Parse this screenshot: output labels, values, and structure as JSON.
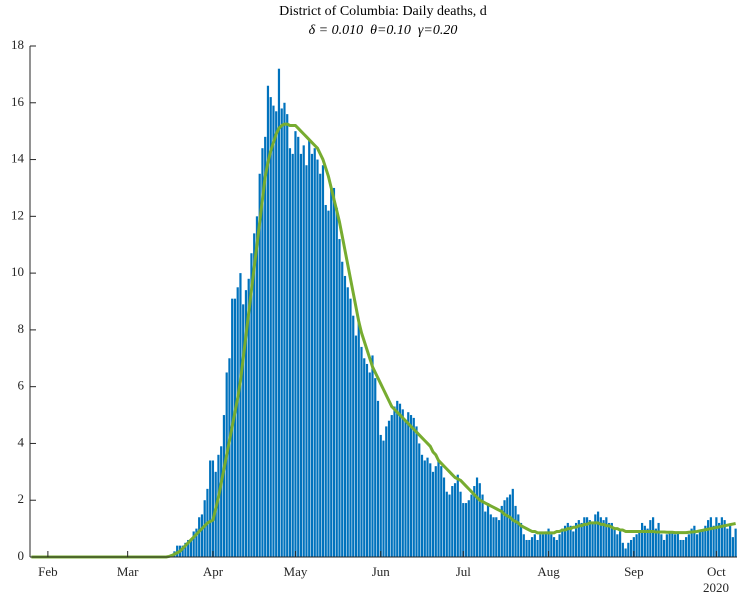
{
  "chart_data": {
    "type": "bar",
    "title": "District of Columbia: Daily deaths, d",
    "subtitle": "δ = 0.010  θ=0.10  γ=0.20",
    "x_axis_year": "2020",
    "categories": [
      null,
      null,
      null,
      null,
      null,
      null,
      "Feb",
      null,
      null,
      null,
      null,
      null,
      null,
      null,
      null,
      null,
      null,
      null,
      null,
      null,
      null,
      null,
      null,
      null,
      null,
      null,
      null,
      null,
      null,
      null,
      null,
      null,
      null,
      null,
      null,
      "Mar",
      null,
      null,
      null,
      null,
      null,
      null,
      null,
      null,
      null,
      null,
      null,
      null,
      null,
      null,
      null,
      null,
      null,
      null,
      null,
      null,
      null,
      null,
      null,
      null,
      null,
      null,
      null,
      null,
      null,
      null,
      "Apr",
      null,
      null,
      null,
      null,
      null,
      null,
      null,
      null,
      null,
      null,
      null,
      null,
      null,
      null,
      null,
      null,
      null,
      null,
      null,
      null,
      null,
      null,
      null,
      null,
      null,
      null,
      null,
      null,
      null,
      "May",
      null,
      null,
      null,
      null,
      null,
      null,
      null,
      null,
      null,
      null,
      null,
      null,
      null,
      null,
      null,
      null,
      null,
      null,
      null,
      null,
      null,
      null,
      null,
      null,
      null,
      null,
      null,
      null,
      null,
      null,
      "Jun",
      null,
      null,
      null,
      null,
      null,
      null,
      null,
      null,
      null,
      null,
      null,
      null,
      null,
      null,
      null,
      null,
      null,
      null,
      null,
      null,
      null,
      null,
      null,
      null,
      null,
      null,
      null,
      null,
      null,
      "Jul",
      null,
      null,
      null,
      null,
      null,
      null,
      null,
      null,
      null,
      null,
      null,
      null,
      null,
      null,
      null,
      null,
      null,
      null,
      null,
      null,
      null,
      null,
      null,
      null,
      null,
      null,
      null,
      null,
      null,
      null,
      "Aug",
      null,
      null,
      null,
      null,
      null,
      null,
      null,
      null,
      null,
      null,
      null,
      null,
      null,
      null,
      null,
      null,
      null,
      null,
      null,
      null,
      null,
      null,
      null,
      null,
      null,
      null,
      null,
      null,
      null,
      null,
      "Sep",
      null,
      null,
      null,
      null,
      null,
      null,
      null,
      null,
      null,
      null,
      null,
      null,
      null,
      null,
      null,
      null,
      null,
      null,
      null,
      null,
      null,
      null,
      null,
      null,
      null,
      null,
      null,
      null,
      null,
      "Oct",
      null,
      null,
      null,
      null,
      null,
      null,
      null
    ],
    "series": [
      {
        "type": "bar",
        "color": "#0072bd",
        "values": [
          0,
          0,
          0,
          0,
          0,
          0,
          0,
          0,
          0,
          0,
          0,
          0,
          0,
          0,
          0,
          0,
          0,
          0,
          0,
          0,
          0,
          0,
          0,
          0,
          0,
          0,
          0,
          0,
          0,
          0,
          0,
          0,
          0,
          0,
          0,
          0,
          0,
          0,
          0,
          0,
          0,
          0,
          0,
          0,
          0,
          0,
          0,
          0,
          0,
          0,
          0,
          0.1,
          0.2,
          0.4,
          0.4,
          0.4,
          0.5,
          0.6,
          0.6,
          0.9,
          1.0,
          1.4,
          1.5,
          2.0,
          2.4,
          3.4,
          3.4,
          3.0,
          3.6,
          3.9,
          5.0,
          6.5,
          7.0,
          9.1,
          9.1,
          9.5,
          10.0,
          8.9,
          9.4,
          9.8,
          10.7,
          11.4,
          12.0,
          13.5,
          14.4,
          14.8,
          16.6,
          16.2,
          15.9,
          15.7,
          17.2,
          15.8,
          16.0,
          15.6,
          14.4,
          14.2,
          15.0,
          14.8,
          14.2,
          14.5,
          13.8,
          14.7,
          14.2,
          14.4,
          14.0,
          13.5,
          13.8,
          12.4,
          12.2,
          13.0,
          13.0,
          12.3,
          11.2,
          10.4,
          9.9,
          9.5,
          9.1,
          8.5,
          7.8,
          8.3,
          7.4,
          7.0,
          6.8,
          6.5,
          7.1,
          6.3,
          5.5,
          4.3,
          4.1,
          4.6,
          4.8,
          5.0,
          5.3,
          5.5,
          5.4,
          5.2,
          4.8,
          5.1,
          5.0,
          4.9,
          4.6,
          4.0,
          3.6,
          3.4,
          3.5,
          3.3,
          3.0,
          3.2,
          3.4,
          3.2,
          2.8,
          2.3,
          2.2,
          2.5,
          2.6,
          2.9,
          2.3,
          1.9,
          1.9,
          2.0,
          2.2,
          2.5,
          2.8,
          2.6,
          2.2,
          1.6,
          1.9,
          1.5,
          1.4,
          1.4,
          1.3,
          1.8,
          2.0,
          2.1,
          2.2,
          2.4,
          1.8,
          1.5,
          1.2,
          0.8,
          0.6,
          0.6,
          0.7,
          0.8,
          0.6,
          0.8,
          0.8,
          0.9,
          1.0,
          0.8,
          0.7,
          0.6,
          0.8,
          1.0,
          1.1,
          1.2,
          1.1,
          0.9,
          1.2,
          1.3,
          1.2,
          1.4,
          1.4,
          1.3,
          1.2,
          1.5,
          1.6,
          1.4,
          1.3,
          1.4,
          1.2,
          1.2,
          1.0,
          0.8,
          0.9,
          0.5,
          0.3,
          0.5,
          0.6,
          0.7,
          0.8,
          0.9,
          1.2,
          1.1,
          1.0,
          1.3,
          1.4,
          1.0,
          1.2,
          0.8,
          0.6,
          0.8,
          0.9,
          0.9,
          0.8,
          0.9,
          0.6,
          0.6,
          0.7,
          0.8,
          1.0,
          1.1,
          0.8,
          0.9,
          0.9,
          1.1,
          1.3,
          1.4,
          1.1,
          1.4,
          1.2,
          1.4,
          1.3,
          1.0,
          1.1,
          0.7,
          1.0
        ]
      },
      {
        "type": "line",
        "color": "#77ac30",
        "values": [
          0,
          0,
          0,
          0,
          0,
          0,
          0,
          0,
          0,
          0,
          0,
          0,
          0,
          0,
          0,
          0,
          0,
          0,
          0,
          0,
          0,
          0,
          0,
          0,
          0,
          0,
          0,
          0,
          0,
          0,
          0,
          0,
          0,
          0,
          0,
          0,
          0,
          0,
          0,
          0,
          0,
          0,
          0,
          0,
          0,
          0,
          0,
          0,
          0,
          0,
          0.02,
          0.05,
          0.1,
          0.15,
          0.2,
          0.3,
          0.4,
          0.5,
          0.6,
          0.7,
          0.8,
          0.9,
          1.0,
          1.1,
          1.2,
          1.25,
          1.3,
          1.7,
          2.1,
          2.6,
          3.1,
          3.6,
          4.1,
          4.6,
          5.1,
          5.6,
          6.2,
          7.0,
          7.8,
          8.6,
          9.4,
          10.2,
          11.0,
          11.8,
          12.6,
          13.4,
          13.9,
          14.3,
          14.6,
          14.9,
          15.1,
          15.2,
          15.25,
          15.25,
          15.2,
          15.2,
          15.2,
          15.1,
          15.0,
          14.9,
          14.8,
          14.7,
          14.6,
          14.5,
          14.4,
          14.2,
          14.0,
          13.7,
          13.4,
          13.0,
          12.6,
          12.2,
          11.8,
          11.3,
          10.8,
          10.3,
          9.8,
          9.3,
          8.8,
          8.3,
          7.9,
          7.6,
          7.3,
          7.0,
          6.7,
          6.5,
          6.3,
          6.1,
          5.9,
          5.7,
          5.5,
          5.3,
          5.2,
          5.1,
          5.0,
          4.9,
          4.8,
          4.7,
          4.6,
          4.5,
          4.4,
          4.3,
          4.2,
          4.1,
          4.0,
          3.9,
          3.7,
          3.6,
          3.4,
          3.3,
          3.2,
          3.1,
          3.0,
          2.9,
          2.8,
          2.75,
          2.7,
          2.6,
          2.5,
          2.4,
          2.3,
          2.2,
          2.1,
          2.0,
          1.95,
          1.9,
          1.85,
          1.8,
          1.75,
          1.7,
          1.65,
          1.6,
          1.5,
          1.45,
          1.4,
          1.3,
          1.25,
          1.2,
          1.1,
          1.05,
          1.0,
          0.95,
          0.9,
          0.9,
          0.85,
          0.85,
          0.85,
          0.85,
          0.85,
          0.85,
          0.85,
          0.9,
          0.9,
          0.95,
          0.95,
          1.0,
          1.0,
          1.05,
          1.05,
          1.1,
          1.1,
          1.15,
          1.15,
          1.2,
          1.2,
          1.2,
          1.2,
          1.15,
          1.15,
          1.1,
          1.1,
          1.05,
          1.0,
          1.0,
          0.95,
          0.95,
          0.9,
          0.9,
          0.9,
          0.9,
          0.9,
          0.9,
          0.9,
          0.9,
          0.9,
          0.9,
          0.9,
          0.88,
          0.88,
          0.88,
          0.88,
          0.87,
          0.87,
          0.87,
          0.86,
          0.86,
          0.86,
          0.86,
          0.86,
          0.87,
          0.88,
          0.89,
          0.9,
          0.92,
          0.94,
          0.96,
          0.98,
          1.0,
          1.02,
          1.04,
          1.06,
          1.08,
          1.1,
          1.12,
          1.14,
          1.16,
          1.18
        ]
      }
    ],
    "ylim": [
      0,
      18
    ],
    "yticks": [
      0,
      2,
      4,
      6,
      8,
      10,
      12,
      14,
      16,
      18
    ],
    "grid": false
  }
}
